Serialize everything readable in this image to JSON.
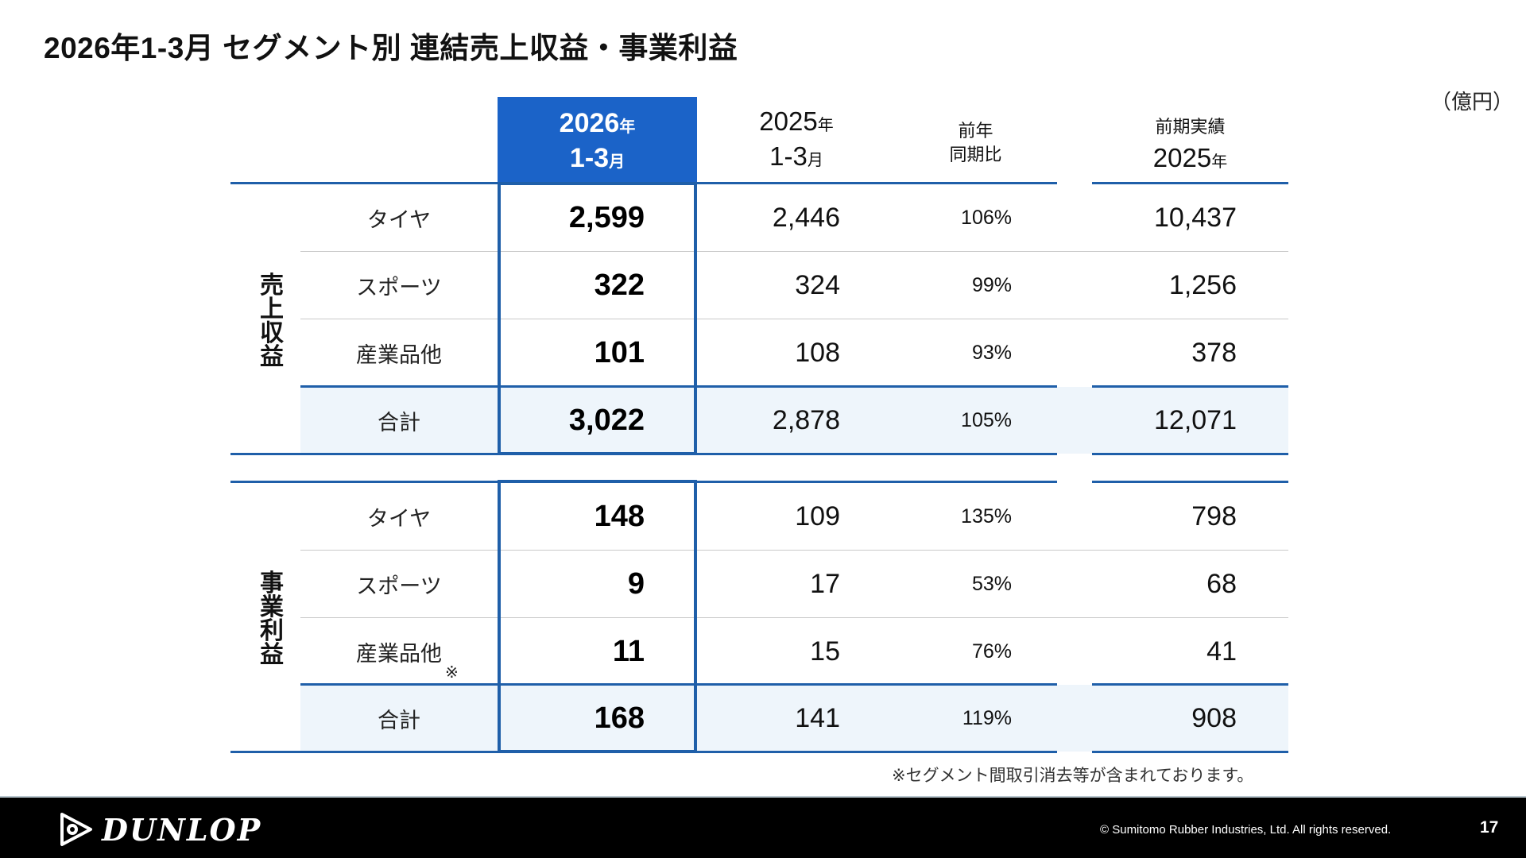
{
  "title": "2026年1-3月 セグメント別 連結売上収益・事業利益",
  "unit": "（億円）",
  "header": {
    "current": {
      "year": "2026",
      "year_suffix": "年",
      "period": "1-3",
      "period_suffix": "月"
    },
    "previous": {
      "year": "2025",
      "year_suffix": "年",
      "period": "1-3",
      "period_suffix": "月"
    },
    "ratio": {
      "line1": "前年",
      "line2": "同期比"
    },
    "last_year": {
      "line1": "前期実績",
      "year": "2025",
      "year_suffix": "年"
    }
  },
  "sections": [
    {
      "label": [
        "売",
        "上",
        "収",
        "益"
      ],
      "rows": [
        {
          "segment": "タイヤ",
          "current": "2,599",
          "previous": "2,446",
          "ratio": "106%",
          "last_year": "10,437"
        },
        {
          "segment": "スポーツ",
          "current": "322",
          "previous": "324",
          "ratio": "99%",
          "last_year": "1,256"
        },
        {
          "segment": "産業品他",
          "current": "101",
          "previous": "108",
          "ratio": "93%",
          "last_year": "378"
        },
        {
          "segment": "合計",
          "current": "3,022",
          "previous": "2,878",
          "ratio": "105%",
          "last_year": "12,071"
        }
      ]
    },
    {
      "label": [
        "事",
        "業",
        "利",
        "益"
      ],
      "rows": [
        {
          "segment": "タイヤ",
          "current": "148",
          "previous": "109",
          "ratio": "135%",
          "last_year": "798"
        },
        {
          "segment": "スポーツ",
          "current": "9",
          "previous": "17",
          "ratio": "53%",
          "last_year": "68"
        },
        {
          "segment": "産業品他",
          "mark": "※",
          "current": "11",
          "previous": "15",
          "ratio": "76%",
          "last_year": "41"
        },
        {
          "segment": "合計",
          "current": "168",
          "previous": "141",
          "ratio": "119%",
          "last_year": "908"
        }
      ]
    }
  ],
  "footnote": "※セグメント間取引消去等が含まれております。",
  "footer": {
    "logo_text": "DUNLOP",
    "copyright": "© Sumitomo Rubber Industries, Ltd. All rights reserved.",
    "page_number": "17"
  },
  "colors": {
    "accent": "#1b63c8",
    "border": "#1f5fa9",
    "total_row_bg": "#eef5fb",
    "footer_bg": "#000000"
  }
}
